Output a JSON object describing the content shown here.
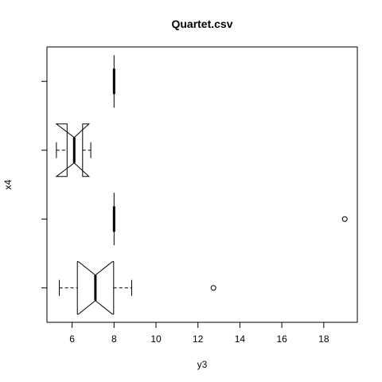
{
  "chart_data": {
    "type": "boxplot",
    "orientation": "horizontal",
    "notched": true,
    "title": "Quartet.csv",
    "xlabel": "y3",
    "ylabel": "x4",
    "xlim": [
      4.8,
      19.6
    ],
    "x_ticks": [
      6,
      8,
      10,
      12,
      14,
      16,
      18
    ],
    "x_tick_labels": [
      "6",
      "8",
      "10",
      "12",
      "14",
      "16",
      "18"
    ],
    "groups": [
      {
        "lower_whisker": 5.39,
        "q1": 6.25,
        "median": 7.11,
        "q3": 7.98,
        "upper_whisker": 8.84,
        "notch_low": 6.3,
        "notch_high": 7.92,
        "outliers": [
          12.74
        ]
      },
      {
        "lower_whisker": 8.0,
        "q1": 8.0,
        "median": 8.0,
        "q3": 8.0,
        "upper_whisker": 8.0,
        "notch_low": 8.0,
        "notch_high": 8.0,
        "outliers": [
          19.0
        ]
      },
      {
        "lower_whisker": 5.25,
        "q1": 5.76,
        "median": 6.1,
        "q3": 6.5,
        "upper_whisker": 6.89,
        "notch_low": 5.25,
        "notch_high": 6.8,
        "outliers": []
      },
      {
        "lower_whisker": 8.0,
        "q1": 8.0,
        "median": 8.0,
        "q3": 8.0,
        "upper_whisker": 8.0,
        "notch_low": 8.0,
        "notch_high": 8.0,
        "outliers": []
      }
    ]
  }
}
